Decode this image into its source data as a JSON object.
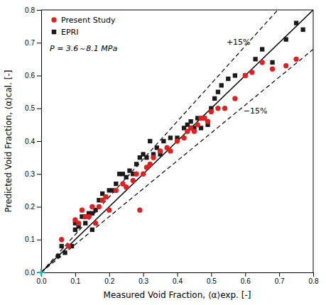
{
  "chart_data": {
    "type": "scatter",
    "x_label": "Measured Void Fraction, ⟨α⟩exp. [-]",
    "y_label": "Predicted Void Fraction, ⟨α⟩cal. [-]",
    "legend": "upper left",
    "grid": false,
    "series": [
      {
        "name": "Present Study",
        "color": "#e02020",
        "marker": "circle",
        "x": [
          0.06,
          0.08,
          0.1,
          0.11,
          0.12,
          0.13,
          0.14,
          0.15,
          0.16,
          0.17,
          0.18,
          0.19,
          0.2,
          0.22,
          0.24,
          0.25,
          0.27,
          0.28,
          0.29,
          0.3,
          0.31,
          0.32,
          0.33,
          0.35,
          0.37,
          0.38,
          0.4,
          0.42,
          0.43,
          0.44,
          0.45,
          0.46,
          0.47,
          0.48,
          0.49,
          0.5,
          0.52,
          0.54,
          0.57,
          0.6,
          0.62,
          0.65,
          0.68,
          0.72,
          0.75
        ],
        "values": [
          0.1,
          0.08,
          0.16,
          0.15,
          0.19,
          0.17,
          0.17,
          0.2,
          0.15,
          0.2,
          0.22,
          0.23,
          0.19,
          0.25,
          0.27,
          0.26,
          0.28,
          0.3,
          0.19,
          0.3,
          0.32,
          0.33,
          0.35,
          0.37,
          0.38,
          0.37,
          0.4,
          0.41,
          0.43,
          0.44,
          0.43,
          0.45,
          0.47,
          0.47,
          0.46,
          0.49,
          0.5,
          0.5,
          0.53,
          0.6,
          0.61,
          0.64,
          0.62,
          0.63,
          0.65
        ]
      },
      {
        "name": "EPRI",
        "color": "#1a1a1a",
        "marker": "square",
        "x": [
          0.05,
          0.06,
          0.07,
          0.08,
          0.09,
          0.1,
          0.1,
          0.11,
          0.12,
          0.13,
          0.14,
          0.15,
          0.15,
          0.16,
          0.17,
          0.18,
          0.19,
          0.2,
          0.21,
          0.22,
          0.23,
          0.24,
          0.25,
          0.26,
          0.27,
          0.28,
          0.29,
          0.3,
          0.31,
          0.32,
          0.33,
          0.34,
          0.35,
          0.36,
          0.38,
          0.4,
          0.42,
          0.43,
          0.44,
          0.45,
          0.46,
          0.47,
          0.48,
          0.49,
          0.5,
          0.51,
          0.52,
          0.53,
          0.55,
          0.57,
          0.6,
          0.63,
          0.65,
          0.68,
          0.72,
          0.75,
          0.77
        ],
        "values": [
          0.05,
          0.08,
          0.06,
          0.08,
          0.08,
          0.13,
          0.15,
          0.14,
          0.17,
          0.15,
          0.18,
          0.18,
          0.13,
          0.19,
          0.22,
          0.24,
          0.23,
          0.25,
          0.25,
          0.27,
          0.3,
          0.3,
          0.29,
          0.31,
          0.3,
          0.33,
          0.35,
          0.36,
          0.35,
          0.4,
          0.36,
          0.38,
          0.36,
          0.4,
          0.41,
          0.41,
          0.44,
          0.45,
          0.46,
          0.44,
          0.47,
          0.44,
          0.47,
          0.45,
          0.5,
          0.53,
          0.55,
          0.57,
          0.59,
          0.6,
          0.6,
          0.65,
          0.68,
          0.64,
          0.71,
          0.76,
          0.74
        ]
      }
    ],
    "reference_lines": [
      {
        "slope": 1,
        "color": "#000000",
        "line_style": "solid"
      },
      {
        "slope": 1.15,
        "color": "#000000",
        "line_style": "dashed"
      },
      {
        "slope": 0.85,
        "color": "#000000",
        "line_style": "dashed"
      }
    ],
    "markers": [
      {
        "x": 0.0,
        "y": 0.0,
        "color": "#00bbbb",
        "marker": "plus"
      }
    ],
    "annotations": [
      {
        "text": "P = 3.6～8.1 MPa"
      },
      {
        "text": "+15%",
        "x": 0.545,
        "y": 0.695
      },
      {
        "text": "−15%",
        "x": 0.595,
        "y": 0.485
      }
    ],
    "xlim": [
      0.0,
      0.8
    ],
    "ylim": [
      0.0,
      0.8
    ],
    "xticks": [
      {
        "value": 0.0,
        "label": "0.0"
      },
      0.1,
      0.2,
      0.3,
      0.4,
      0.5,
      0.6,
      0.7,
      0.8
    ],
    "yticks": [
      {
        "value": 0.0,
        "label": "0.0"
      },
      0.1,
      0.2,
      0.3,
      0.4,
      0.5,
      0.6,
      0.7,
      0.8
    ]
  }
}
